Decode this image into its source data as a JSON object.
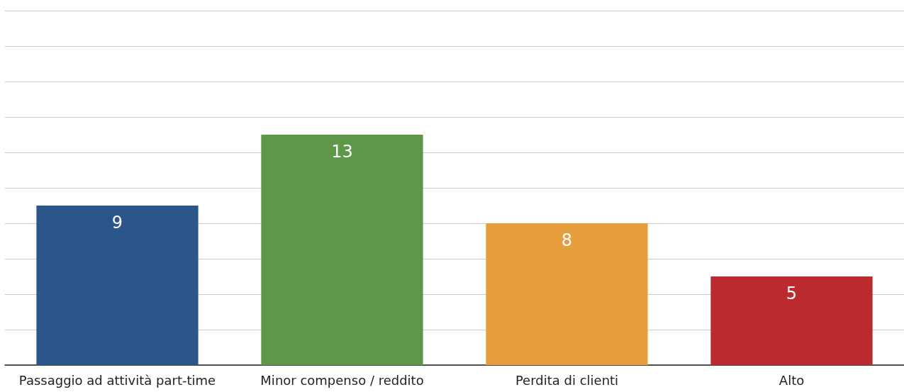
{
  "chart_data": {
    "type": "bar",
    "categories": [
      "Passaggio ad attività part-time",
      "Minor compenso / reddito",
      "Perdita di clienti",
      "Alto"
    ],
    "values": [
      9,
      13,
      8,
      5
    ],
    "colors": [
      "#2c5589",
      "#5e9747",
      "#e69f3c",
      "#ba2a2f"
    ],
    "ylim": [
      0,
      20
    ],
    "yticks": [
      0,
      2,
      4,
      6,
      8,
      10,
      12,
      14,
      16,
      18,
      20
    ],
    "grid": "y",
    "tick_labels": "x",
    "data_labels": true
  }
}
